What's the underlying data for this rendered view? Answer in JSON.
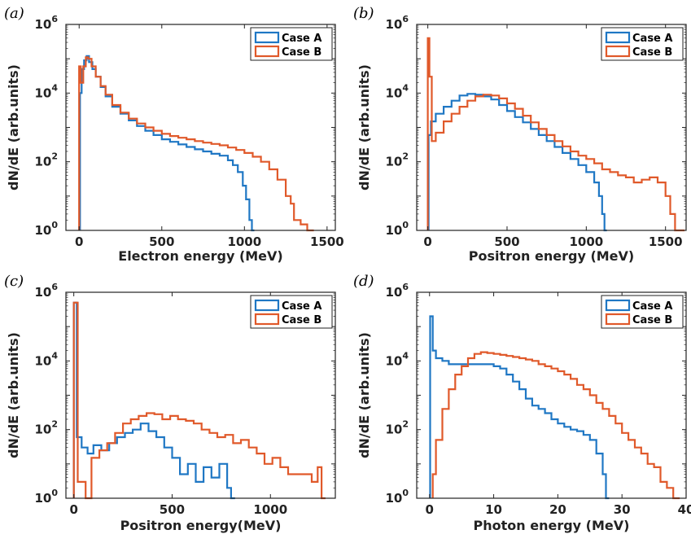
{
  "colors": {
    "case_a": "#1f77c4",
    "case_b": "#e0592a",
    "axis": "#222222"
  },
  "chart_data": [
    {
      "type": "histogram",
      "panel_label": "(a)",
      "xlabel": "Electron energy (MeV)",
      "ylabel": "dN/dE (arb.units)",
      "xlim": [
        -80,
        1550
      ],
      "ylim_log10": [
        0,
        6
      ],
      "xticks": [
        0,
        500,
        1000,
        1500
      ],
      "yticks": [
        "10^0",
        "10^2",
        "10^4",
        "10^6"
      ],
      "y_log": true,
      "legend": {
        "position": "top-right",
        "entries": [
          "Case A",
          "Case B"
        ]
      },
      "series": [
        {
          "name": "Case A",
          "points": [
            [
              5,
              10000
            ],
            [
              15,
              50000
            ],
            [
              30,
              90000
            ],
            [
              45,
              120000
            ],
            [
              60,
              80000
            ],
            [
              80,
              50000
            ],
            [
              100,
              30000
            ],
            [
              130,
              15000
            ],
            [
              160,
              8000
            ],
            [
              200,
              4000
            ],
            [
              250,
              2500
            ],
            [
              300,
              1600
            ],
            [
              350,
              1100
            ],
            [
              400,
              800
            ],
            [
              450,
              600
            ],
            [
              500,
              450
            ],
            [
              550,
              380
            ],
            [
              600,
              320
            ],
            [
              650,
              270
            ],
            [
              700,
              230
            ],
            [
              750,
              200
            ],
            [
              800,
              170
            ],
            [
              850,
              150
            ],
            [
              900,
              110
            ],
            [
              930,
              80
            ],
            [
              960,
              50
            ],
            [
              990,
              20
            ],
            [
              1010,
              8
            ],
            [
              1030,
              2
            ],
            [
              1045,
              1
            ]
          ]
        },
        {
          "name": "Case B",
          "points": [
            [
              0,
              60000
            ],
            [
              10,
              20000
            ],
            [
              25,
              60000
            ],
            [
              40,
              110000
            ],
            [
              55,
              100000
            ],
            [
              75,
              60000
            ],
            [
              100,
              30000
            ],
            [
              130,
              16000
            ],
            [
              160,
              9000
            ],
            [
              200,
              4500
            ],
            [
              250,
              2700
            ],
            [
              300,
              1800
            ],
            [
              350,
              1300
            ],
            [
              400,
              1000
            ],
            [
              450,
              800
            ],
            [
              500,
              650
            ],
            [
              550,
              560
            ],
            [
              600,
              500
            ],
            [
              650,
              450
            ],
            [
              700,
              400
            ],
            [
              750,
              360
            ],
            [
              800,
              330
            ],
            [
              850,
              300
            ],
            [
              900,
              260
            ],
            [
              950,
              220
            ],
            [
              1000,
              180
            ],
            [
              1050,
              140
            ],
            [
              1100,
              100
            ],
            [
              1150,
              60
            ],
            [
              1200,
              30
            ],
            [
              1250,
              10
            ],
            [
              1280,
              6
            ],
            [
              1300,
              2
            ],
            [
              1340,
              1.5
            ],
            [
              1380,
              1
            ]
          ]
        }
      ]
    },
    {
      "type": "histogram",
      "panel_label": "(b)",
      "xlabel": "Positron energy (MeV)",
      "ylabel": "dN/dE (arb.units)",
      "xlim": [
        -70,
        1630
      ],
      "ylim_log10": [
        0,
        6
      ],
      "xticks": [
        0,
        500,
        1000,
        1500
      ],
      "yticks": [
        "10^0",
        "10^2",
        "10^4",
        "10^6"
      ],
      "y_log": true,
      "legend": {
        "position": "top-right",
        "entries": [
          "Case A",
          "Case B"
        ]
      },
      "series": [
        {
          "name": "Case A",
          "points": [
            [
              5,
              600
            ],
            [
              20,
              1500
            ],
            [
              50,
              2500
            ],
            [
              100,
              4000
            ],
            [
              150,
              6000
            ],
            [
              200,
              8500
            ],
            [
              250,
              9500
            ],
            [
              300,
              9000
            ],
            [
              350,
              8000
            ],
            [
              400,
              6500
            ],
            [
              450,
              4500
            ],
            [
              500,
              3000
            ],
            [
              550,
              2000
            ],
            [
              600,
              1400
            ],
            [
              650,
              900
            ],
            [
              700,
              600
            ],
            [
              750,
              400
            ],
            [
              800,
              270
            ],
            [
              850,
              180
            ],
            [
              900,
              120
            ],
            [
              950,
              80
            ],
            [
              1000,
              50
            ],
            [
              1050,
              25
            ],
            [
              1080,
              10
            ],
            [
              1100,
              3
            ],
            [
              1115,
              1
            ]
          ]
        },
        {
          "name": "Case B",
          "points": [
            [
              0,
              400000
            ],
            [
              10,
              30000
            ],
            [
              25,
              400
            ],
            [
              50,
              700
            ],
            [
              100,
              1500
            ],
            [
              150,
              2500
            ],
            [
              200,
              4000
            ],
            [
              250,
              6000
            ],
            [
              300,
              8000
            ],
            [
              350,
              9000
            ],
            [
              400,
              8500
            ],
            [
              450,
              7000
            ],
            [
              500,
              5000
            ],
            [
              550,
              3500
            ],
            [
              600,
              2200
            ],
            [
              650,
              1400
            ],
            [
              700,
              900
            ],
            [
              750,
              600
            ],
            [
              800,
              400
            ],
            [
              850,
              280
            ],
            [
              900,
              200
            ],
            [
              950,
              150
            ],
            [
              1000,
              120
            ],
            [
              1050,
              90
            ],
            [
              1100,
              60
            ],
            [
              1150,
              50
            ],
            [
              1200,
              40
            ],
            [
              1250,
              35
            ],
            [
              1300,
              25
            ],
            [
              1350,
              30
            ],
            [
              1400,
              35
            ],
            [
              1450,
              25
            ],
            [
              1500,
              10
            ],
            [
              1530,
              3
            ],
            [
              1560,
              1
            ],
            [
              1590,
              1
            ]
          ]
        }
      ]
    },
    {
      "type": "histogram",
      "panel_label": "(c)",
      "xlabel": "Positron energy(MeV)",
      "ylabel": "dN/dE (arb.units)",
      "xlim": [
        -40,
        1330
      ],
      "ylim_log10": [
        0,
        6
      ],
      "xticks": [
        0,
        500,
        1000
      ],
      "yticks": [
        "10^0",
        "10^2",
        "10^4",
        "10^6"
      ],
      "y_log": true,
      "legend": {
        "position": "top-right",
        "entries": [
          "Case A",
          "Case B"
        ]
      },
      "series": [
        {
          "name": "Case A",
          "points": [
            [
              0,
              500000
            ],
            [
              15,
              60
            ],
            [
              40,
              30
            ],
            [
              70,
              20
            ],
            [
              100,
              35
            ],
            [
              140,
              25
            ],
            [
              180,
              40
            ],
            [
              220,
              60
            ],
            [
              260,
              80
            ],
            [
              300,
              100
            ],
            [
              340,
              150
            ],
            [
              380,
              90
            ],
            [
              420,
              60
            ],
            [
              460,
              30
            ],
            [
              500,
              15
            ],
            [
              540,
              5
            ],
            [
              580,
              10
            ],
            [
              620,
              3
            ],
            [
              660,
              8
            ],
            [
              700,
              4
            ],
            [
              740,
              10
            ],
            [
              780,
              2
            ],
            [
              800,
              1
            ]
          ]
        },
        {
          "name": "Case B",
          "points": [
            [
              0,
              500000
            ],
            [
              20,
              3
            ],
            [
              60,
              1
            ],
            [
              90,
              15
            ],
            [
              130,
              25
            ],
            [
              170,
              40
            ],
            [
              210,
              80
            ],
            [
              250,
              150
            ],
            [
              290,
              200
            ],
            [
              330,
              250
            ],
            [
              370,
              300
            ],
            [
              410,
              280
            ],
            [
              450,
              200
            ],
            [
              490,
              250
            ],
            [
              530,
              200
            ],
            [
              570,
              180
            ],
            [
              610,
              150
            ],
            [
              650,
              100
            ],
            [
              690,
              80
            ],
            [
              730,
              60
            ],
            [
              770,
              70
            ],
            [
              810,
              40
            ],
            [
              850,
              50
            ],
            [
              890,
              30
            ],
            [
              930,
              20
            ],
            [
              970,
              10
            ],
            [
              1010,
              15
            ],
            [
              1050,
              8
            ],
            [
              1090,
              5
            ],
            [
              1130,
              5
            ],
            [
              1170,
              5
            ],
            [
              1210,
              3
            ],
            [
              1240,
              8
            ],
            [
              1260,
              1
            ]
          ]
        }
      ]
    },
    {
      "type": "histogram",
      "panel_label": "(d)",
      "xlabel": "Photon energy (MeV)",
      "ylabel": "dN/dE (arb.units)",
      "xlim": [
        -2,
        40
      ],
      "ylim_log10": [
        0,
        6
      ],
      "xticks": [
        0,
        10,
        20,
        30,
        40
      ],
      "yticks": [
        "10^0",
        "10^2",
        "10^4",
        "10^6"
      ],
      "y_log": true,
      "legend": {
        "position": "top-right",
        "entries": [
          "Case A",
          "Case B"
        ]
      },
      "series": [
        {
          "name": "Case A",
          "points": [
            [
              0.1,
              200000
            ],
            [
              0.5,
              20000
            ],
            [
              1,
              12000
            ],
            [
              2,
              10000
            ],
            [
              3,
              8000
            ],
            [
              4,
              8000
            ],
            [
              5,
              8000
            ],
            [
              6,
              8000
            ],
            [
              7,
              8000
            ],
            [
              8,
              8000
            ],
            [
              9,
              8000
            ],
            [
              10,
              7000
            ],
            [
              11,
              6000
            ],
            [
              12,
              4000
            ],
            [
              13,
              2500
            ],
            [
              14,
              1500
            ],
            [
              15,
              800
            ],
            [
              16,
              500
            ],
            [
              17,
              400
            ],
            [
              18,
              300
            ],
            [
              19,
              200
            ],
            [
              20,
              150
            ],
            [
              21,
              120
            ],
            [
              22,
              100
            ],
            [
              23,
              90
            ],
            [
              24,
              70
            ],
            [
              25,
              50
            ],
            [
              26,
              20
            ],
            [
              27,
              5
            ],
            [
              27.5,
              1
            ]
          ]
        },
        {
          "name": "Case B",
          "points": [
            [
              0.5,
              5
            ],
            [
              1,
              50
            ],
            [
              2,
              400
            ],
            [
              3,
              1500
            ],
            [
              4,
              4000
            ],
            [
              5,
              7000
            ],
            [
              6,
              12000
            ],
            [
              7,
              16000
            ],
            [
              8,
              18000
            ],
            [
              9,
              17000
            ],
            [
              10,
              16000
            ],
            [
              11,
              15000
            ],
            [
              12,
              14000
            ],
            [
              13,
              13000
            ],
            [
              14,
              12000
            ],
            [
              15,
              11000
            ],
            [
              16,
              10000
            ],
            [
              17,
              8000
            ],
            [
              18,
              7000
            ],
            [
              19,
              6000
            ],
            [
              20,
              5000
            ],
            [
              21,
              4000
            ],
            [
              22,
              3000
            ],
            [
              23,
              2000
            ],
            [
              24,
              1500
            ],
            [
              25,
              1000
            ],
            [
              26,
              600
            ],
            [
              27,
              400
            ],
            [
              28,
              250
            ],
            [
              29,
              150
            ],
            [
              30,
              80
            ],
            [
              31,
              50
            ],
            [
              32,
              30
            ],
            [
              33,
              20
            ],
            [
              34,
              10
            ],
            [
              35,
              8
            ],
            [
              36,
              3
            ],
            [
              37,
              2
            ],
            [
              38,
              1
            ]
          ]
        }
      ]
    }
  ]
}
